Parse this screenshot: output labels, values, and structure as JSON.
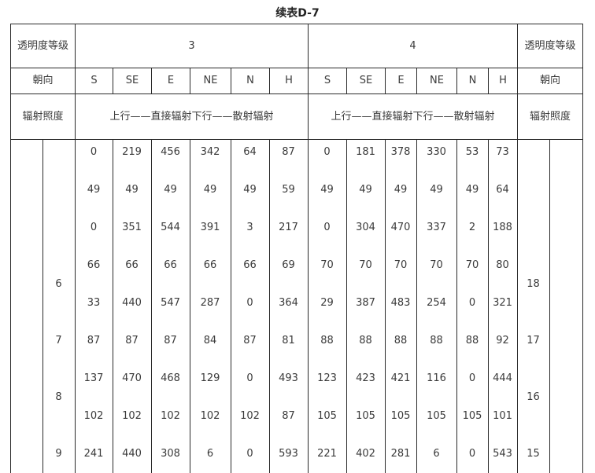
{
  "title": "续表D-7",
  "header": {
    "level_label": [
      "透明度",
      "等级"
    ],
    "orientation_label": "朝向",
    "irradiance_label": [
      "辐射",
      "照度"
    ],
    "groups": [
      {
        "level": "3",
        "note": [
          "上行——直接辐射",
          "下行——散射辐射"
        ]
      },
      {
        "level": "4",
        "note": [
          "上行——直接辐射",
          "下行——散射辐射"
        ]
      }
    ],
    "orientations": [
      "S",
      "SE",
      "E",
      "NE",
      "N",
      "H"
    ]
  },
  "body": {
    "rows": [
      [
        "0",
        "219",
        "456",
        "342",
        "64",
        "87",
        "0",
        "181",
        "378",
        "330",
        "53",
        "73"
      ],
      [
        "49",
        "49",
        "49",
        "49",
        "49",
        "59",
        "49",
        "49",
        "49",
        "49",
        "49",
        "64"
      ],
      [
        "0",
        "351",
        "544",
        "391",
        "3",
        "217",
        "0",
        "304",
        "470",
        "337",
        "2",
        "188"
      ],
      [
        "66",
        "66",
        "66",
        "66",
        "66",
        "69",
        "70",
        "70",
        "70",
        "70",
        "70",
        "80"
      ],
      [
        "33",
        "440",
        "547",
        "287",
        "0",
        "364",
        "29",
        "387",
        "483",
        "254",
        "0",
        "321"
      ],
      [
        "87",
        "87",
        "87",
        "84",
        "87",
        "81",
        "88",
        "88",
        "88",
        "88",
        "88",
        "92"
      ],
      [
        "137",
        "470",
        "468",
        "129",
        "0",
        "493",
        "123",
        "423",
        "421",
        "116",
        "0",
        "444"
      ],
      [
        "102",
        "102",
        "102",
        "102",
        "102",
        "87",
        "105",
        "105",
        "105",
        "105",
        "105",
        "101"
      ],
      [
        "241",
        "440",
        "308",
        "6",
        "0",
        "593",
        "221",
        "402",
        "281",
        "6",
        "0",
        "543"
      ]
    ],
    "left_hours": [
      {
        "label": "6",
        "row": 3.5
      },
      {
        "label": "7",
        "row": 5
      },
      {
        "label": "8",
        "row": 6.5
      },
      {
        "label": "9",
        "row": 8
      }
    ],
    "right_hours": [
      {
        "label": "18",
        "row": 3.5
      },
      {
        "label": "17",
        "row": 5
      },
      {
        "label": "16",
        "row": 6.5
      },
      {
        "label": "15",
        "row": 8
      }
    ]
  }
}
